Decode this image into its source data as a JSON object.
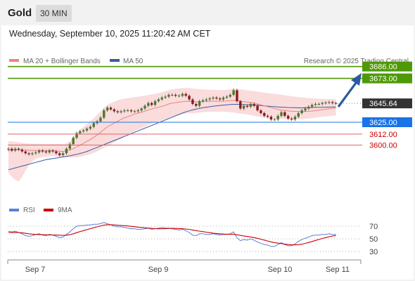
{
  "header": {
    "title": "Gold",
    "interval": "30 MIN"
  },
  "datetime": "Wednesday, September 10, 2025 11:20:42 AM CET",
  "credit": "Research © 2025 Trading Central",
  "colors": {
    "bollinger_band": "#f9d6d6",
    "ma20": "#f08080",
    "ma50": "#3b5ba5",
    "resistance": "#4e9a06",
    "pivot": "#1a73e8",
    "support": "#e06666",
    "current": "#333333",
    "arrow": "#2c5aa0",
    "rsi": "#5b7fd6",
    "rsi_ma": "#cc0000"
  },
  "legend": {
    "ma20": "MA 20 + Bollinger Bands",
    "ma50": "MA 50",
    "rsi": "RSI",
    "rsi_ma": "9MA"
  },
  "chart_data": [
    {
      "type": "candlestick",
      "x_ticks": [
        "Sep 7",
        "Sep 9",
        "Sep 10",
        "Sep 11"
      ],
      "levels": [
        {
          "label": "3686.00",
          "value": 3686.0,
          "kind": "resistance"
        },
        {
          "label": "3673.00",
          "value": 3673.0,
          "kind": "resistance"
        },
        {
          "label": "3645.64",
          "value": 3645.64,
          "kind": "current"
        },
        {
          "label": "3625.00",
          "value": 3625.0,
          "kind": "pivot"
        },
        {
          "label": "3612.00",
          "value": 3612.0,
          "kind": "support"
        },
        {
          "label": "3600.00",
          "value": 3600.0,
          "kind": "support"
        }
      ],
      "close": [
        3596,
        3594,
        3596,
        3595,
        3593,
        3591,
        3590,
        3591,
        3592,
        3594,
        3593,
        3592,
        3594,
        3593,
        3591,
        3589,
        3591,
        3596,
        3601,
        3608,
        3613,
        3615,
        3616,
        3618,
        3620,
        3624,
        3626,
        3630,
        3638,
        3641,
        3639,
        3637,
        3636,
        3637,
        3638,
        3638,
        3637,
        3637,
        3638,
        3640,
        3643,
        3646,
        3644,
        3648,
        3650,
        3652,
        3653,
        3655,
        3655,
        3654,
        3654,
        3656,
        3654,
        3650,
        3645,
        3643,
        3648,
        3649,
        3650,
        3651,
        3652,
        3651,
        3650,
        3652,
        3653,
        3655,
        3660,
        3648,
        3640,
        3643,
        3642,
        3645,
        3643,
        3638,
        3635,
        3632,
        3631,
        3628,
        3628,
        3632,
        3636,
        3632,
        3629,
        3628,
        3631,
        3635,
        3638,
        3640,
        3642,
        3644,
        3645,
        3645,
        3646,
        3646.5,
        3647,
        3646,
        3645.64
      ],
      "ma20": [
        3594,
        3594.5,
        3594.8,
        3595,
        3594.8,
        3594.5,
        3594.2,
        3594,
        3594,
        3594,
        3594,
        3594,
        3594,
        3594,
        3593.5,
        3593.2,
        3593,
        3593.6,
        3594.5,
        3596,
        3598,
        3600,
        3602,
        3604,
        3606,
        3608.5,
        3611,
        3614,
        3617,
        3620,
        3622,
        3624,
        3626,
        3628,
        3630,
        3631,
        3632.5,
        3634,
        3635,
        3636,
        3637,
        3638.5,
        3639.5,
        3640.5,
        3641.5,
        3642.5,
        3643.5,
        3645,
        3646,
        3646.5,
        3647,
        3647.5,
        3647.8,
        3648,
        3647.6,
        3647.4,
        3647.6,
        3647.6,
        3647.8,
        3648,
        3648,
        3648,
        3648,
        3648,
        3648.2,
        3648.6,
        3649,
        3648.6,
        3648,
        3647.6,
        3647,
        3646.6,
        3646,
        3645,
        3644,
        3643,
        3642,
        3641,
        3640,
        3639,
        3638.4,
        3638,
        3637.5,
        3637,
        3637,
        3636.8,
        3636.7,
        3636.8,
        3637,
        3637.3,
        3637.8,
        3638.3,
        3638.7,
        3639.2,
        3639.8,
        3640.3,
        3640.8
      ],
      "ma50": [
        3573,
        3574,
        3575,
        3576,
        3577,
        3578,
        3579,
        3580,
        3581,
        3582,
        3583,
        3584,
        3584.6,
        3585.2,
        3585.8,
        3586.4,
        3587,
        3587.6,
        3588.2,
        3589,
        3589.8,
        3590.8,
        3591.8,
        3593,
        3594.5,
        3596,
        3597.5,
        3599,
        3600.5,
        3602,
        3603.5,
        3605,
        3606.5,
        3608,
        3609.5,
        3611,
        3612.5,
        3614,
        3615.5,
        3617,
        3618.5,
        3620,
        3621.5,
        3623,
        3624.5,
        3626,
        3627.5,
        3629,
        3630.5,
        3632,
        3633.5,
        3635,
        3636.4,
        3637.5,
        3638.5,
        3639.4,
        3640.2,
        3640.9,
        3641.5,
        3642,
        3642.5,
        3643,
        3643.4,
        3643.8,
        3644.1,
        3644.4,
        3644.6,
        3644.6,
        3644.5,
        3644.4,
        3644.2,
        3644,
        3643.8,
        3643.5,
        3643.2,
        3642.9,
        3642.6,
        3642.3,
        3642,
        3641.7,
        3641.5,
        3641.3,
        3641.1,
        3641,
        3640.9,
        3640.8,
        3640.8,
        3640.9,
        3641,
        3641.1,
        3641.2,
        3641.3,
        3641.4,
        3641.5,
        3641.6,
        3641.7,
        3641.8
      ],
      "bb_upper": [
        3604,
        3604,
        3603.5,
        3603,
        3602.5,
        3602,
        3601.8,
        3601.6,
        3601.5,
        3601.5,
        3601.4,
        3601.3,
        3601.3,
        3601.2,
        3601.2,
        3601.2,
        3601.4,
        3602,
        3604,
        3608,
        3613,
        3617,
        3620,
        3623,
        3626,
        3629.5,
        3633,
        3637,
        3641,
        3644,
        3646,
        3647.5,
        3649,
        3650,
        3651,
        3651.5,
        3652,
        3652.5,
        3653,
        3653.5,
        3654,
        3655,
        3655.5,
        3656,
        3657,
        3658,
        3659,
        3660,
        3661,
        3661.5,
        3662,
        3662.5,
        3662.5,
        3662.5,
        3662,
        3661.5,
        3661.2,
        3661,
        3660.8,
        3660.6,
        3660.5,
        3660.4,
        3660.3,
        3660.2,
        3660.5,
        3661,
        3662,
        3661.5,
        3661,
        3660.5,
        3660,
        3659.5,
        3659,
        3658.5,
        3658,
        3657.5,
        3657,
        3656.5,
        3656,
        3655.5,
        3655,
        3654.5,
        3654,
        3653.5,
        3653,
        3652.5,
        3652,
        3651.8,
        3651.5,
        3651.3,
        3651,
        3650.8,
        3650.6,
        3650.5,
        3650.4,
        3650.3,
        3650.2
      ],
      "bb_lower": [
        3570,
        3565,
        3562,
        3560,
        3565,
        3572,
        3578,
        3582,
        3585,
        3586,
        3587,
        3587.5,
        3587.8,
        3588,
        3587.5,
        3587,
        3586.5,
        3586.5,
        3586.5,
        3586.5,
        3586.5,
        3587,
        3588,
        3589,
        3590,
        3591.5,
        3593,
        3595,
        3597,
        3599,
        3601,
        3603,
        3605,
        3607,
        3609,
        3611,
        3613,
        3615,
        3617,
        3618.5,
        3620,
        3622,
        3623.5,
        3625,
        3626,
        3627,
        3628,
        3629.5,
        3631,
        3632,
        3633,
        3634,
        3634.5,
        3635,
        3635,
        3635,
        3635.5,
        3636,
        3636.2,
        3636.4,
        3636.5,
        3636.5,
        3636.5,
        3636.5,
        3636.3,
        3636,
        3635.5,
        3635,
        3634.5,
        3634,
        3633.5,
        3632.8,
        3632,
        3631.2,
        3630.5,
        3630,
        3629.5,
        3629,
        3628.5,
        3628.5,
        3628.5,
        3628.5,
        3628.4,
        3628.3,
        3628.3,
        3628.4,
        3628.6,
        3628.8,
        3629.1,
        3629.5,
        3630,
        3630.5,
        3631,
        3631.4,
        3631.8,
        3632.2,
        3632.5
      ]
    },
    {
      "type": "line",
      "name": "RSI",
      "y_ticks": [
        70,
        50,
        30
      ],
      "rsi": [
        62,
        61,
        62,
        60,
        58,
        55,
        54,
        55,
        57,
        58,
        56,
        55,
        57,
        56,
        54,
        52,
        53,
        57,
        61,
        66,
        70,
        71,
        71,
        72,
        72,
        73,
        73,
        74,
        76,
        74,
        72,
        70,
        69,
        69,
        68,
        67,
        66,
        66,
        65,
        65,
        66,
        67,
        65,
        66,
        67,
        68,
        67,
        67,
        66,
        65,
        64,
        65,
        63,
        60,
        56,
        55,
        58,
        58,
        57,
        57,
        58,
        57,
        56,
        57,
        57,
        58,
        61,
        52,
        47,
        49,
        48,
        50,
        48,
        45,
        43,
        41,
        40,
        38,
        38,
        41,
        44,
        41,
        39,
        39,
        42,
        46,
        49,
        51,
        53,
        55,
        56,
        56,
        57,
        57,
        58,
        57,
        57
      ],
      "ma9": [
        60,
        60,
        60.2,
        60,
        59.5,
        58.8,
        58,
        57.4,
        57,
        56.8,
        56.5,
        56.3,
        56.2,
        56.1,
        56,
        55.8,
        55.6,
        55.8,
        56.6,
        58,
        59.8,
        61.5,
        63,
        64.6,
        66,
        67.6,
        69,
        70.5,
        71.8,
        72.3,
        72.3,
        72,
        71.6,
        71.2,
        70.8,
        70.3,
        69.8,
        69.2,
        68.5,
        68,
        67.5,
        67,
        66.5,
        66.1,
        65.9,
        66,
        66.2,
        66.4,
        66.5,
        66.4,
        66.2,
        66,
        65.6,
        65,
        64,
        63,
        62.2,
        61.4,
        60.6,
        59.8,
        59,
        58.5,
        58,
        57.6,
        57.3,
        57.2,
        57.3,
        56.4,
        55.4,
        54.6,
        53.8,
        53,
        52,
        50.8,
        49.4,
        48,
        46.6,
        45.2,
        44,
        43.2,
        42.6,
        41.8,
        41,
        40.5,
        40.4,
        40.8,
        41.6,
        42.8,
        44.2,
        45.8,
        47.4,
        49,
        50.6,
        52,
        53.3,
        54.4,
        55.3
      ]
    }
  ]
}
